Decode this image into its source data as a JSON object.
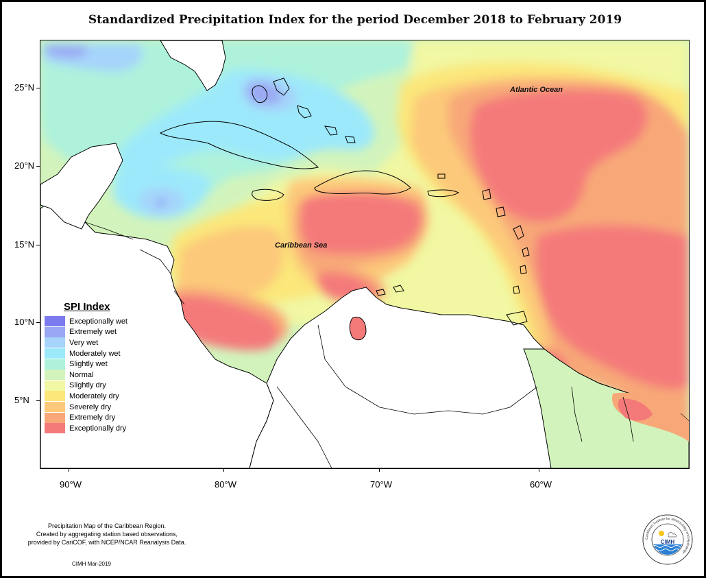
{
  "title": "Standardized Precipitation Index for the period December 2018 to February 2019",
  "axes": {
    "lat_labels": [
      "25°N",
      "20°N",
      "15°N",
      "10°N",
      "5°N"
    ],
    "lon_labels": [
      "90°W",
      "80°W",
      "70°W",
      "60°W"
    ]
  },
  "labels": {
    "atlantic": "Atlantic Ocean",
    "caribbean": "Caribbean Sea"
  },
  "legend": {
    "title": "SPI Index",
    "items": [
      {
        "label": "Exceptionally wet",
        "color": "#7b7bef"
      },
      {
        "label": "Extremely wet",
        "color": "#9aa8f3"
      },
      {
        "label": "Very wet",
        "color": "#a6d4fb"
      },
      {
        "label": "Moderately wet",
        "color": "#9ce9fb"
      },
      {
        "label": "Slightly wet",
        "color": "#aef2dc"
      },
      {
        "label": "Normal",
        "color": "#d2f4bc"
      },
      {
        "label": "Slightly dry",
        "color": "#f1f7a2"
      },
      {
        "label": "Moderately dry",
        "color": "#fbe77a"
      },
      {
        "label": "Severely dry",
        "color": "#fcc97a"
      },
      {
        "label": "Extremely dry",
        "color": "#f8a878"
      },
      {
        "label": "Exceptionally dry",
        "color": "#f47a7a"
      }
    ]
  },
  "footer": {
    "line1": "Precipitation Map of the Caribbean Region.",
    "line2": "Created by aggregating station based observations,",
    "line3": "provided by CariCOF, with NCEP/NCAR Reanalysis Data.",
    "credit": "CIMH Mar-2019"
  },
  "logo": {
    "text": "CIMH",
    "ring_text": "Caribbean Institute for Meteorology and Hydrology"
  }
}
